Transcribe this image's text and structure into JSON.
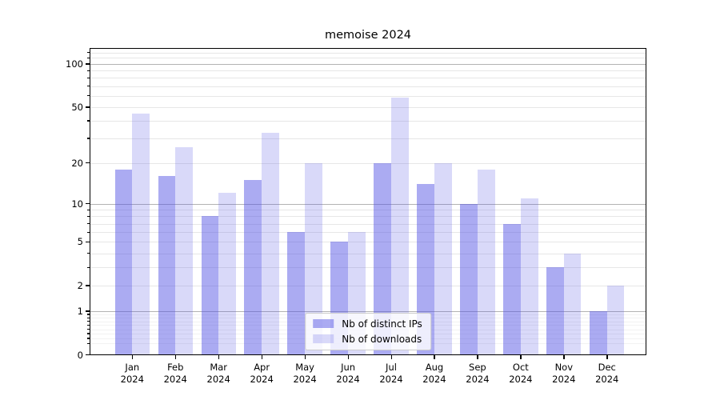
{
  "chart_data": {
    "type": "bar",
    "title": "memoise 2024",
    "categories": [
      "Jan 2024",
      "Feb 2024",
      "Mar 2024",
      "Apr 2024",
      "May 2024",
      "Jun 2024",
      "Jul 2024",
      "Aug 2024",
      "Sep 2024",
      "Oct 2024",
      "Nov 2024",
      "Dec 2024"
    ],
    "series": [
      {
        "name": "Nb of distinct IPs",
        "values": [
          18,
          16,
          8,
          15,
          6,
          5,
          20,
          14,
          10,
          7,
          3,
          1
        ]
      },
      {
        "name": "Nb of downloads",
        "values": [
          45,
          26,
          12,
          33,
          20,
          6,
          58,
          20,
          18,
          11,
          4,
          2
        ]
      }
    ],
    "yscale": "log1p",
    "ylim": [
      0,
      129
    ],
    "yticks": [
      0,
      1,
      2,
      5,
      10,
      20,
      50,
      100
    ],
    "grid": true,
    "legend_position": "lower center"
  },
  "x_axis": {
    "months": [
      "Jan",
      "Feb",
      "Mar",
      "Apr",
      "May",
      "Jun",
      "Jul",
      "Aug",
      "Sep",
      "Oct",
      "Nov",
      "Dec"
    ],
    "year": "2024"
  },
  "y_axis": {
    "tick_labels": [
      "100",
      "50",
      "20",
      "10",
      "5",
      "2",
      "1",
      "0"
    ]
  },
  "legend": {
    "items": [
      {
        "label": "Nb of distinct IPs"
      },
      {
        "label": "Nb of downloads"
      }
    ]
  },
  "colors": {
    "ips_bar": "rgba(77,77,228,0.47)",
    "downloads_bar": "rgba(77,77,228,0.21)",
    "grid_major": "#b3b3b3",
    "grid_light": "#e7e7e7",
    "grid_faint": "#f2f2f2",
    "spine": "#000000",
    "text": "#000000"
  }
}
